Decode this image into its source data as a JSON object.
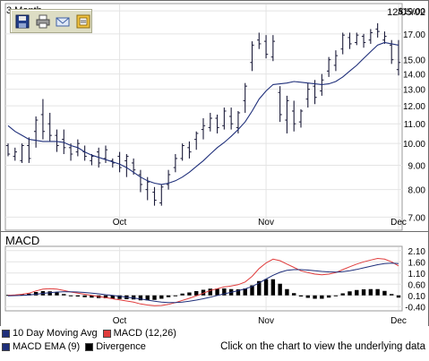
{
  "header": {
    "period_label": "3 Month",
    "date_label": "12/05/02"
  },
  "price_chart": {
    "y_ticks": [
      "$19.00",
      "17.00",
      "15.00",
      "14.00",
      "13.00",
      "12.00",
      "11.00",
      "10.00",
      "9.00",
      "8.00",
      "7.00"
    ],
    "x_ticks": [
      "Oct",
      "Nov",
      "Dec"
    ]
  },
  "macd_chart": {
    "title": "MACD",
    "y_ticks": [
      "2.10",
      "1.60",
      "1.10",
      "0.60",
      "0.10",
      "-0.40"
    ],
    "x_ticks": [
      "Oct",
      "Nov",
      "Dec"
    ]
  },
  "legend": {
    "items": [
      {
        "label": "10 Day Moving Avg",
        "color": "#1f2f7a"
      },
      {
        "label": "MACD (12,26)",
        "color": "#e03c3c"
      },
      {
        "label": "MACD EMA (9)",
        "color": "#1f2f7a"
      },
      {
        "label": "Divergence",
        "color": "#000000"
      }
    ]
  },
  "hint_text": "Click on the chart to view the underlying data",
  "toolbar": {
    "icons": [
      "save-icon",
      "print-icon",
      "email-icon",
      "export-icon"
    ]
  },
  "chart_data": [
    {
      "type": "line",
      "subtype": "ohlc-with-moving-average",
      "title": "3 Month",
      "date_label": "12/05/02",
      "yscale": "log",
      "ylim": [
        6.6,
        19.6
      ],
      "x_tick_labels": [
        "Oct",
        "Nov",
        "Dec"
      ],
      "y_tick_labels": [
        "$19.00",
        "17.00",
        "15.00",
        "14.00",
        "13.00",
        "12.00",
        "11.00",
        "10.00",
        "9.00",
        "8.00",
        "7.00"
      ],
      "grid": true,
      "bars": {
        "high": [
          10.0,
          9.8,
          10.0,
          10.3,
          11.4,
          12.4,
          11.6,
          10.7,
          10.7,
          10.0,
          10.2,
          9.9,
          9.5,
          9.8,
          9.9,
          9.3,
          9.6,
          9.5,
          9.3,
          8.8,
          8.5,
          8.1,
          8.2,
          8.8,
          9.5,
          10.0,
          10.1,
          10.6,
          11.3,
          11.6,
          11.5,
          11.9,
          11.9,
          11.7,
          13.4,
          16.4,
          17.1,
          16.9,
          16.9,
          13.2,
          12.6,
          12.3,
          11.8,
          13.4,
          13.6,
          14.0,
          15.2,
          15.7,
          17.1,
          17.1,
          17.1,
          17.0,
          17.4,
          17.9,
          17.2,
          16.5,
          16.5
        ],
        "low": [
          9.4,
          9.2,
          9.1,
          9.1,
          9.8,
          10.2,
          10.1,
          9.6,
          9.5,
          9.2,
          9.4,
          9.2,
          9.0,
          8.9,
          9.1,
          8.9,
          8.7,
          8.5,
          8.6,
          7.9,
          7.6,
          7.4,
          7.4,
          8.0,
          8.7,
          9.2,
          9.3,
          9.7,
          10.2,
          10.6,
          10.5,
          10.7,
          10.7,
          10.5,
          11.6,
          14.2,
          15.8,
          15.1,
          14.9,
          11.1,
          10.5,
          10.6,
          10.8,
          11.9,
          12.1,
          12.6,
          13.8,
          14.2,
          15.4,
          15.8,
          16.1,
          15.9,
          16.2,
          16.7,
          16.2,
          14.7,
          13.9
        ],
        "open": [
          9.9,
          9.4,
          9.2,
          9.9,
          10.6,
          11.5,
          11.0,
          10.4,
          10.2,
          9.8,
          9.6,
          9.6,
          9.2,
          9.6,
          9.3,
          9.2,
          9.4,
          9.2,
          9.1,
          8.6,
          8.0,
          7.9,
          7.5,
          8.2,
          8.9,
          9.3,
          9.8,
          10.2,
          10.7,
          10.8,
          11.3,
          10.9,
          11.4,
          10.8,
          12.3,
          14.8,
          16.5,
          16.4,
          15.2,
          12.8,
          11.2,
          11.7,
          11.1,
          12.4,
          13.2,
          12.9,
          14.2,
          14.6,
          15.8,
          16.7,
          16.3,
          16.8,
          16.5,
          17.4,
          16.5,
          16.1,
          14.3
        ],
        "close": [
          9.5,
          9.6,
          9.9,
          9.3,
          11.2,
          10.6,
          10.4,
          9.9,
          9.8,
          9.5,
          10.0,
          9.4,
          9.4,
          9.1,
          9.7,
          9.1,
          8.9,
          9.4,
          8.8,
          8.2,
          8.3,
          7.6,
          8.1,
          8.6,
          9.3,
          9.9,
          9.6,
          10.5,
          10.9,
          11.3,
          10.8,
          11.7,
          11.0,
          11.6,
          13.2,
          16.1,
          16.2,
          15.4,
          16.4,
          11.5,
          12.3,
          11.0,
          11.7,
          13.0,
          12.5,
          13.6,
          15.0,
          15.3,
          16.9,
          16.2,
          16.9,
          16.3,
          17.1,
          17.2,
          16.8,
          15.0,
          14.8
        ]
      },
      "series": [
        {
          "name": "10 Day Moving Avg",
          "color": "#1f2f7a",
          "values": [
            10.9,
            10.6,
            10.4,
            10.2,
            10.15,
            10.1,
            10.1,
            10.1,
            10.05,
            9.9,
            9.8,
            9.6,
            9.45,
            9.35,
            9.25,
            9.15,
            9.05,
            8.9,
            8.7,
            8.5,
            8.35,
            8.25,
            8.2,
            8.25,
            8.35,
            8.5,
            8.7,
            8.95,
            9.2,
            9.5,
            9.8,
            10.05,
            10.35,
            10.7,
            11.1,
            11.7,
            12.4,
            12.9,
            13.3,
            13.35,
            13.4,
            13.5,
            13.45,
            13.4,
            13.35,
            13.3,
            13.35,
            13.5,
            13.8,
            14.2,
            14.6,
            15.1,
            15.6,
            16.1,
            16.3,
            16.2,
            16.1
          ]
        }
      ]
    },
    {
      "type": "line",
      "subtype": "macd",
      "title": "MACD",
      "ylim": [
        -0.55,
        2.25
      ],
      "x_tick_labels": [
        "Oct",
        "Nov",
        "Dec"
      ],
      "y_tick_labels": [
        "2.10",
        "1.60",
        "1.10",
        "0.60",
        "0.10",
        "-0.40"
      ],
      "grid": true,
      "series": [
        {
          "name": "MACD (12,26)",
          "color": "#e03c3c",
          "values": [
            0.1,
            0.12,
            0.15,
            0.2,
            0.3,
            0.38,
            0.4,
            0.38,
            0.32,
            0.25,
            0.2,
            0.15,
            0.1,
            0.05,
            0.0,
            -0.05,
            -0.1,
            -0.15,
            -0.2,
            -0.28,
            -0.33,
            -0.36,
            -0.35,
            -0.3,
            -0.22,
            -0.12,
            -0.03,
            0.08,
            0.2,
            0.32,
            0.4,
            0.48,
            0.52,
            0.58,
            0.7,
            0.95,
            1.3,
            1.55,
            1.72,
            1.65,
            1.5,
            1.35,
            1.2,
            1.12,
            1.05,
            1.02,
            1.05,
            1.12,
            1.25,
            1.38,
            1.5,
            1.6,
            1.68,
            1.75,
            1.72,
            1.6,
            1.42
          ]
        },
        {
          "name": "MACD EMA (9)",
          "color": "#1f2f7a",
          "values": [
            0.08,
            0.09,
            0.1,
            0.12,
            0.15,
            0.19,
            0.22,
            0.25,
            0.26,
            0.26,
            0.25,
            0.23,
            0.2,
            0.17,
            0.13,
            0.1,
            0.06,
            0.02,
            -0.02,
            -0.06,
            -0.11,
            -0.16,
            -0.2,
            -0.22,
            -0.22,
            -0.2,
            -0.16,
            -0.11,
            -0.05,
            0.02,
            0.1,
            0.17,
            0.24,
            0.31,
            0.39,
            0.5,
            0.66,
            0.83,
            1.0,
            1.13,
            1.22,
            1.25,
            1.25,
            1.23,
            1.2,
            1.17,
            1.15,
            1.14,
            1.16,
            1.2,
            1.26,
            1.33,
            1.4,
            1.47,
            1.52,
            1.54,
            1.52
          ]
        },
        {
          "name": "Divergence",
          "color": "#000000",
          "values": [
            0.02,
            0.03,
            0.05,
            0.08,
            0.15,
            0.19,
            0.18,
            0.13,
            0.06,
            -0.01,
            -0.05,
            -0.08,
            -0.1,
            -0.12,
            -0.13,
            -0.15,
            -0.16,
            -0.17,
            -0.18,
            -0.22,
            -0.22,
            -0.2,
            -0.15,
            -0.08,
            0.0,
            0.08,
            0.13,
            0.19,
            0.25,
            0.3,
            0.3,
            0.31,
            0.28,
            0.27,
            0.31,
            0.45,
            0.64,
            0.72,
            0.72,
            0.52,
            0.28,
            0.1,
            -0.05,
            -0.11,
            -0.15,
            -0.15,
            -0.1,
            -0.02,
            0.09,
            0.18,
            0.24,
            0.27,
            0.28,
            0.28,
            0.2,
            0.06,
            -0.1
          ]
        }
      ]
    }
  ]
}
